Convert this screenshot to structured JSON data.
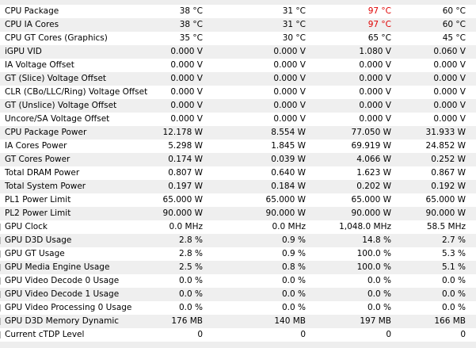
{
  "rows": [
    {
      "label": "CPU Package",
      "v1": "38 °C",
      "v2": "31 °C",
      "v3": "97 °C",
      "v4": "60 °C",
      "v3_red": true,
      "v4_red": false
    },
    {
      "label": "CPU IA Cores",
      "v1": "38 °C",
      "v2": "31 °C",
      "v3": "97 °C",
      "v4": "60 °C",
      "v3_red": true,
      "v4_red": false
    },
    {
      "label": "CPU GT Cores (Graphics)",
      "v1": "35 °C",
      "v2": "30 °C",
      "v3": "65 °C",
      "v4": "45 °C",
      "v3_red": false,
      "v4_red": false
    },
    {
      "label": "iGPU VID",
      "v1": "0.000 V",
      "v2": "0.000 V",
      "v3": "1.080 V",
      "v4": "0.060 V"
    },
    {
      "label": "IA Voltage Offset",
      "v1": "0.000 V",
      "v2": "0.000 V",
      "v3": "0.000 V",
      "v4": "0.000 V"
    },
    {
      "label": "GT (Slice) Voltage Offset",
      "v1": "0.000 V",
      "v2": "0.000 V",
      "v3": "0.000 V",
      "v4": "0.000 V"
    },
    {
      "label": "CLR (CBo/LLC/Ring) Voltage Offset",
      "v1": "0.000 V",
      "v2": "0.000 V",
      "v3": "0.000 V",
      "v4": "0.000 V"
    },
    {
      "label": "GT (Unslice) Voltage Offset",
      "v1": "0.000 V",
      "v2": "0.000 V",
      "v3": "0.000 V",
      "v4": "0.000 V"
    },
    {
      "label": "Uncore/SA Voltage Offset",
      "v1": "0.000 V",
      "v2": "0.000 V",
      "v3": "0.000 V",
      "v4": "0.000 V"
    },
    {
      "label": "CPU Package Power",
      "v1": "12.178 W",
      "v2": "8.554 W",
      "v3": "77.050 W",
      "v4": "31.933 W"
    },
    {
      "label": "IA Cores Power",
      "v1": "5.298 W",
      "v2": "1.845 W",
      "v3": "69.919 W",
      "v4": "24.852 W"
    },
    {
      "label": "GT Cores Power",
      "v1": "0.174 W",
      "v2": "0.039 W",
      "v3": "4.066 W",
      "v4": "0.252 W"
    },
    {
      "label": "Total DRAM Power",
      "v1": "0.807 W",
      "v2": "0.640 W",
      "v3": "1.623 W",
      "v4": "0.867 W"
    },
    {
      "label": "Total System Power",
      "v1": "0.197 W",
      "v2": "0.184 W",
      "v3": "0.202 W",
      "v4": "0.192 W"
    },
    {
      "label": "PL1 Power Limit",
      "v1": "65.000 W",
      "v2": "65.000 W",
      "v3": "65.000 W",
      "v4": "65.000 W"
    },
    {
      "label": "PL2 Power Limit",
      "v1": "90.000 W",
      "v2": "90.000 W",
      "v3": "90.000 W",
      "v4": "90.000 W"
    },
    {
      "label": "GPU Clock",
      "v1": "0.0 MHz",
      "v2": "0.0 MHz",
      "v3": "1,048.0 MHz",
      "v4": "58.5 MHz"
    },
    {
      "label": "GPU D3D Usage",
      "v1": "2.8 %",
      "v2": "0.9 %",
      "v3": "14.8 %",
      "v4": "2.7 %"
    },
    {
      "label": "GPU GT Usage",
      "v1": "2.8 %",
      "v2": "0.9 %",
      "v3": "100.0 %",
      "v4": "5.3 %"
    },
    {
      "label": "GPU Media Engine Usage",
      "v1": "2.5 %",
      "v2": "0.8 %",
      "v3": "100.0 %",
      "v4": "5.1 %"
    },
    {
      "label": "GPU Video Decode 0 Usage",
      "v1": "0.0 %",
      "v2": "0.0 %",
      "v3": "0.0 %",
      "v4": "0.0 %"
    },
    {
      "label": "GPU Video Decode 1 Usage",
      "v1": "0.0 %",
      "v2": "0.0 %",
      "v3": "0.0 %",
      "v4": "0.0 %"
    },
    {
      "label": "GPU Video Processing 0 Usage",
      "v1": "0.0 %",
      "v2": "0.0 %",
      "v3": "0.0 %",
      "v4": "0.0 %"
    },
    {
      "label": "GPU D3D Memory Dynamic",
      "v1": "176 MB",
      "v2": "140 MB",
      "v3": "197 MB",
      "v4": "166 MB"
    },
    {
      "label": "Current cTDP Level",
      "v1": "0",
      "v2": "0",
      "v3": "0",
      "v4": "0"
    }
  ],
  "colors": {
    "alarm": "#e00000",
    "alt_row": "#efefef"
  }
}
